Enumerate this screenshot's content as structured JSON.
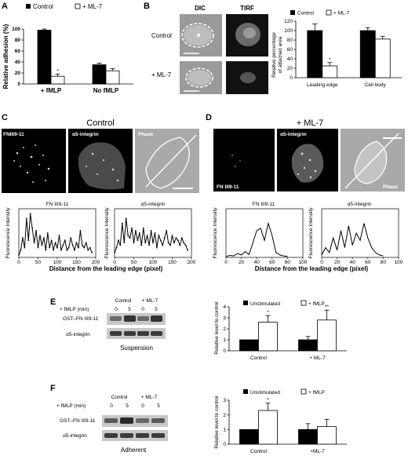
{
  "panels": {
    "A": {
      "letter": "A",
      "legend": [
        "Control",
        "+ ML-7"
      ],
      "ylabel": "Relative adhesion (%)",
      "yticks": [
        "0",
        "20",
        "40",
        "60",
        "80",
        "100"
      ],
      "groups": [
        "+ fMLP",
        "No fMLP"
      ],
      "star": "*"
    },
    "B": {
      "letter": "B",
      "col_labels": [
        "DIC",
        "TIRF"
      ],
      "row_labels": [
        "Control",
        "+ ML-7"
      ],
      "legend": [
        "Control",
        "+ ML-7"
      ],
      "ylabel_lines": [
        "Relative percentage",
        "of attached area"
      ],
      "yticks": [
        "0",
        "20",
        "40",
        "60",
        "80",
        "100",
        "120"
      ],
      "groups": [
        "Leading edge",
        "Cell body"
      ],
      "star": "*"
    },
    "C": {
      "letter": "C",
      "title": "Control",
      "channels": [
        "FNIII9-11",
        "α5-integrin",
        "Phase"
      ],
      "plot_titles": [
        "FN III9-11",
        "α5-integrin"
      ],
      "ylabel": "Fluorescence Intensity",
      "xticks": [
        "0",
        "50",
        "100",
        "150",
        "200"
      ],
      "xlabel": "Distance from the leading edge (pixel)"
    },
    "D": {
      "letter": "D",
      "title": "+ ML-7",
      "channels": [
        "FN III9-11",
        "α5-integrin",
        "Phase"
      ],
      "plot_titles": [
        "FN III9-11",
        "α5-integrin"
      ],
      "ylabel": "Fluorescence Intensity",
      "xticks": [
        "0",
        "20",
        "40",
        "60",
        "80",
        "100"
      ],
      "xlabel": "Distance from the leading edge (pixel)"
    },
    "E": {
      "letter": "E",
      "blot_header": [
        "Control",
        "+ ML-7"
      ],
      "fmlp_label": "+ fMLP (min)",
      "lanes": [
        "0",
        "5",
        "0",
        "5"
      ],
      "rows": [
        "GST–FN III9-11",
        "α5-integrin"
      ],
      "condition": "Suspension",
      "legend": [
        "Unstimulated",
        "+ fMLP"
      ],
      "ylabel": "Relative level to control",
      "yticks": [
        "0",
        "1",
        "2",
        "3",
        "4"
      ],
      "groups": [
        "Control",
        "+ ML-7"
      ],
      "stars": [
        "*",
        "**"
      ]
    },
    "F": {
      "letter": "F",
      "blot_header": [
        "Control",
        "+ ML-7"
      ],
      "fmlp_label": "+ fMLP (min)",
      "lanes": [
        "0",
        "5",
        "0",
        "5"
      ],
      "rows": [
        "GST–FN III9-11",
        "α5-integrin"
      ],
      "condition": "Adherent",
      "legend": [
        "Unstimulated",
        "+ fMLP"
      ],
      "ylabel": "Relative level to control",
      "yticks": [
        "0",
        "1",
        "2",
        "3"
      ],
      "groups": [
        "Control",
        "+ML-7"
      ],
      "stars": [
        "*"
      ]
    }
  },
  "chart_data": [
    {
      "id": "A",
      "type": "bar",
      "categories": [
        "+ fMLP",
        "No fMLP"
      ],
      "series": [
        {
          "name": "Control",
          "values": [
            98,
            35
          ],
          "errors": [
            2,
            3
          ]
        },
        {
          "name": "+ ML-7",
          "values": [
            14,
            24
          ],
          "errors": [
            4,
            4
          ]
        }
      ],
      "ylabel": "Relative adhesion (%)",
      "ylim": [
        0,
        100
      ]
    },
    {
      "id": "B",
      "type": "bar",
      "categories": [
        "Leading edge",
        "Cell body"
      ],
      "series": [
        {
          "name": "Control",
          "values": [
            100,
            100
          ],
          "errors": [
            14,
            6
          ]
        },
        {
          "name": "+ ML-7",
          "values": [
            25,
            82
          ],
          "errors": [
            7,
            6
          ]
        }
      ],
      "ylabel": "Relative percentage of attached area",
      "ylim": [
        0,
        120
      ]
    },
    {
      "id": "C1",
      "type": "line",
      "title": "FN III9-11",
      "x": [
        0,
        5,
        10,
        15,
        20,
        25,
        30,
        35,
        40,
        45,
        50,
        55,
        60,
        65,
        70,
        75,
        80,
        85,
        90,
        95,
        100,
        105,
        110,
        115,
        120,
        125,
        130,
        135,
        140,
        145,
        150,
        155,
        160,
        165,
        170,
        175,
        180,
        185,
        190
      ],
      "y": [
        5,
        15,
        40,
        20,
        80,
        35,
        90,
        60,
        30,
        55,
        20,
        45,
        25,
        40,
        15,
        50,
        20,
        35,
        15,
        30,
        20,
        45,
        15,
        25,
        35,
        15,
        20,
        40,
        25,
        15,
        30,
        20,
        55,
        25,
        20,
        30,
        15,
        20,
        10
      ],
      "xlim": [
        0,
        200
      ],
      "xlabel": "Distance from the leading edge (pixel)",
      "ylabel": "Fluorescence Intensity"
    },
    {
      "id": "C2",
      "type": "line",
      "title": "α5-integrin",
      "x": [
        0,
        5,
        10,
        15,
        20,
        25,
        30,
        35,
        40,
        45,
        50,
        55,
        60,
        65,
        70,
        75,
        80,
        85,
        90,
        95,
        100,
        105,
        110,
        115,
        120,
        125,
        130,
        135,
        140,
        145,
        150,
        155,
        160,
        165,
        170,
        175,
        180,
        185,
        190
      ],
      "y": [
        10,
        20,
        35,
        25,
        70,
        30,
        80,
        45,
        40,
        60,
        30,
        55,
        35,
        50,
        25,
        60,
        30,
        45,
        25,
        55,
        30,
        50,
        20,
        45,
        35,
        25,
        40,
        55,
        30,
        25,
        45,
        30,
        40,
        35,
        25,
        40,
        30,
        25,
        15
      ],
      "xlim": [
        0,
        200
      ],
      "xlabel": "Distance from the leading edge (pixel)",
      "ylabel": "Fluorescence Intensity"
    },
    {
      "id": "D1",
      "type": "line",
      "title": "FN III9-11",
      "x": [
        0,
        5,
        10,
        15,
        20,
        25,
        30,
        35,
        40,
        45,
        50,
        55,
        60,
        65,
        70,
        75,
        80
      ],
      "y": [
        2,
        4,
        3,
        8,
        5,
        12,
        6,
        30,
        55,
        60,
        35,
        70,
        45,
        10,
        5,
        3,
        2
      ],
      "xlim": [
        0,
        100
      ],
      "xlabel": "Distance from the leading edge (pixel)",
      "ylabel": "Fluorescence Intensity"
    },
    {
      "id": "D2",
      "type": "line",
      "title": "α5-integrin",
      "x": [
        0,
        5,
        10,
        15,
        20,
        25,
        30,
        35,
        40,
        45,
        50,
        55,
        60,
        65,
        70,
        75,
        80
      ],
      "y": [
        5,
        20,
        10,
        40,
        15,
        55,
        20,
        65,
        25,
        50,
        35,
        70,
        40,
        20,
        10,
        5,
        3
      ],
      "xlim": [
        0,
        100
      ],
      "xlabel": "Distance from the leading edge (pixel)",
      "ylabel": "Fluorescence Intensity"
    },
    {
      "id": "E",
      "type": "bar",
      "categories": [
        "Control",
        "+ ML-7"
      ],
      "series": [
        {
          "name": "Unstimulated",
          "values": [
            1.0,
            1.0
          ],
          "errors": [
            0,
            0.3
          ]
        },
        {
          "name": "+ fMLP",
          "values": [
            2.6,
            2.8
          ],
          "errors": [
            0.6,
            0.9
          ]
        }
      ],
      "ylabel": "Relative level to control",
      "ylim": [
        0,
        4
      ]
    },
    {
      "id": "F",
      "type": "bar",
      "categories": [
        "Control",
        "+ML-7"
      ],
      "series": [
        {
          "name": "Unstimulated",
          "values": [
            1.0,
            1.0
          ],
          "errors": [
            0,
            0.4
          ]
        },
        {
          "name": "+ fMLP",
          "values": [
            2.3,
            1.2
          ],
          "errors": [
            0.5,
            0.5
          ]
        }
      ],
      "ylabel": "Relative level to control",
      "ylim": [
        0,
        3
      ]
    }
  ]
}
